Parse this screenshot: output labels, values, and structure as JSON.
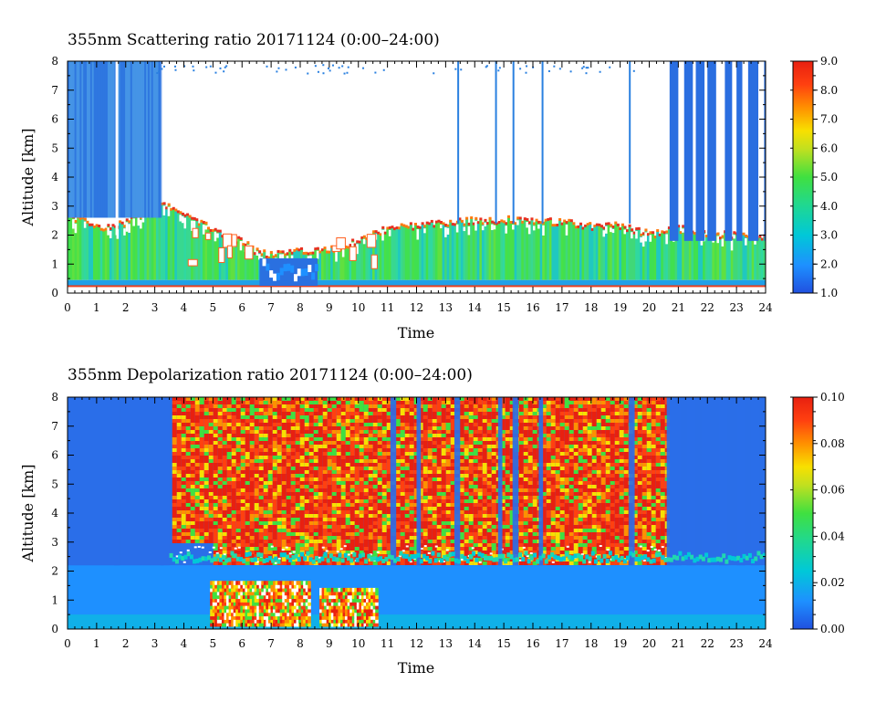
{
  "chart_data": [
    {
      "type": "heatmap",
      "title": "355nm Scattering ratio  20171124 (0:00–24:00)",
      "xlabel": "Time",
      "ylabel": "Altitude [km]",
      "x_ticks": [
        "0",
        "1",
        "2",
        "3",
        "4",
        "5",
        "6",
        "7",
        "8",
        "9",
        "10",
        "11",
        "12",
        "13",
        "14",
        "15",
        "16",
        "17",
        "18",
        "19",
        "20",
        "21",
        "22",
        "23",
        "24"
      ],
      "y_ticks": [
        "0",
        "1",
        "2",
        "3",
        "4",
        "5",
        "6",
        "7",
        "8"
      ],
      "xlim": [
        0,
        24
      ],
      "ylim": [
        0,
        8
      ],
      "colorbar": {
        "min": 1.0,
        "max": 9.0,
        "ticks": [
          "1.0",
          "2.0",
          "3.0",
          "4.0",
          "5.0",
          "6.0",
          "7.0",
          "8.0",
          "9.0"
        ]
      },
      "layer_top_km": [
        [
          0,
          2.6
        ],
        [
          1.5,
          2.2
        ],
        [
          3,
          2.9
        ],
        [
          3.5,
          3.0
        ],
        [
          4.3,
          2.5
        ],
        [
          5,
          2.2
        ],
        [
          6,
          1.7
        ],
        [
          6.5,
          1.4
        ],
        [
          7,
          1.3
        ],
        [
          8,
          1.4
        ],
        [
          9,
          1.5
        ],
        [
          10,
          1.8
        ],
        [
          11,
          2.2
        ],
        [
          12,
          2.3
        ],
        [
          13,
          2.4
        ],
        [
          14,
          2.5
        ],
        [
          15,
          2.5
        ],
        [
          16,
          2.5
        ],
        [
          17,
          2.4
        ],
        [
          18,
          2.3
        ],
        [
          19,
          2.3
        ],
        [
          20,
          2.0
        ],
        [
          21,
          2.2
        ],
        [
          22,
          2.0
        ],
        [
          23,
          2.0
        ],
        [
          24,
          1.9
        ]
      ]
    },
    {
      "type": "heatmap",
      "title": "355nm Depolarization ratio  20171124 (0:00–24:00)",
      "xlabel": "Time",
      "ylabel": "Altitude [km]",
      "x_ticks": [
        "0",
        "1",
        "2",
        "3",
        "4",
        "5",
        "6",
        "7",
        "8",
        "9",
        "10",
        "11",
        "12",
        "13",
        "14",
        "15",
        "16",
        "17",
        "18",
        "19",
        "20",
        "21",
        "22",
        "23",
        "24"
      ],
      "y_ticks": [
        "0",
        "1",
        "2",
        "3",
        "4",
        "5",
        "6",
        "7",
        "8"
      ],
      "xlim": [
        0,
        24
      ],
      "ylim": [
        0,
        8
      ],
      "colorbar": {
        "min": 0.0,
        "max": 0.1,
        "ticks": [
          "0.00",
          "0.02",
          "0.04",
          "0.06",
          "0.08",
          "0.10"
        ]
      }
    }
  ],
  "colors": {
    "scale": [
      "#2050e0",
      "#1e90ff",
      "#00c8d8",
      "#20d890",
      "#40e040",
      "#c0e020",
      "#f8e000",
      "#ff9000",
      "#ff4010",
      "#e82010"
    ]
  }
}
